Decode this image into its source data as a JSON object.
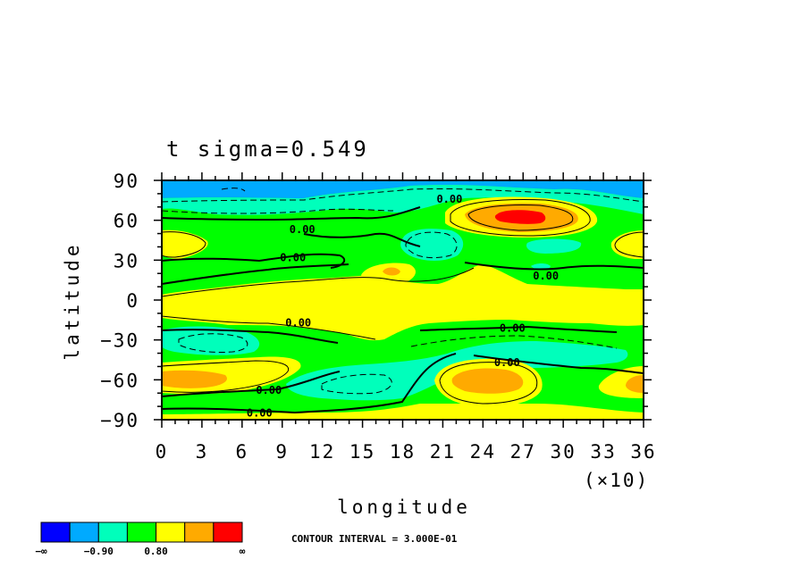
{
  "chart_data": {
    "type": "heatmap",
    "title": "t  sigma=0.549",
    "xlabel": "longitude",
    "ylabel": "latitude",
    "x_multiplier_label": "(×10)",
    "xlim": [
      0,
      36
    ],
    "ylim": [
      -90,
      90
    ],
    "x_ticks": [
      "0",
      "3",
      "6",
      "9",
      "12",
      "15",
      "18",
      "21",
      "24",
      "27",
      "30",
      "33",
      "36"
    ],
    "y_ticks": [
      "90",
      "60",
      "30",
      "0",
      "−30",
      "−60",
      "−90"
    ],
    "x_tick_values": [
      0,
      3,
      6,
      9,
      12,
      15,
      18,
      21,
      24,
      27,
      30,
      33,
      36
    ],
    "y_tick_values": [
      90,
      60,
      30,
      0,
      -30,
      -60,
      -90
    ],
    "contour_labels": [
      {
        "x": 21.5,
        "y": 76,
        "text": "0.00"
      },
      {
        "x": 10.5,
        "y": 53,
        "text": "0.00"
      },
      {
        "x": 9.8,
        "y": 32,
        "text": "0.00"
      },
      {
        "x": 28.7,
        "y": 18,
        "text": "0.00"
      },
      {
        "x": 10.2,
        "y": -17,
        "text": "0.00"
      },
      {
        "x": 26.2,
        "y": -21,
        "text": "0.00"
      },
      {
        "x": 25.8,
        "y": -47,
        "text": "0.00"
      },
      {
        "x": 8.0,
        "y": -68,
        "text": "0.00"
      },
      {
        "x": 7.3,
        "y": -85,
        "text": "0.00"
      }
    ],
    "colorbar": {
      "colors": [
        "#0000ff",
        "#00aaff",
        "#00ffbb",
        "#00ff00",
        "#ffff00",
        "#ffaa00",
        "#ff0000"
      ],
      "labels": [
        "−∞",
        "−0.90",
        "0.80",
        "∞"
      ]
    },
    "contour_interval_note": "CONTOUR INTERVAL = 3.000E-01",
    "field_colors": {
      "deep_blue": "#00aaff",
      "cyan": "#00ffbb",
      "green": "#00ff00",
      "yellow": "#ffff00",
      "orange": "#ffaa00",
      "red": "#ff0000"
    }
  }
}
